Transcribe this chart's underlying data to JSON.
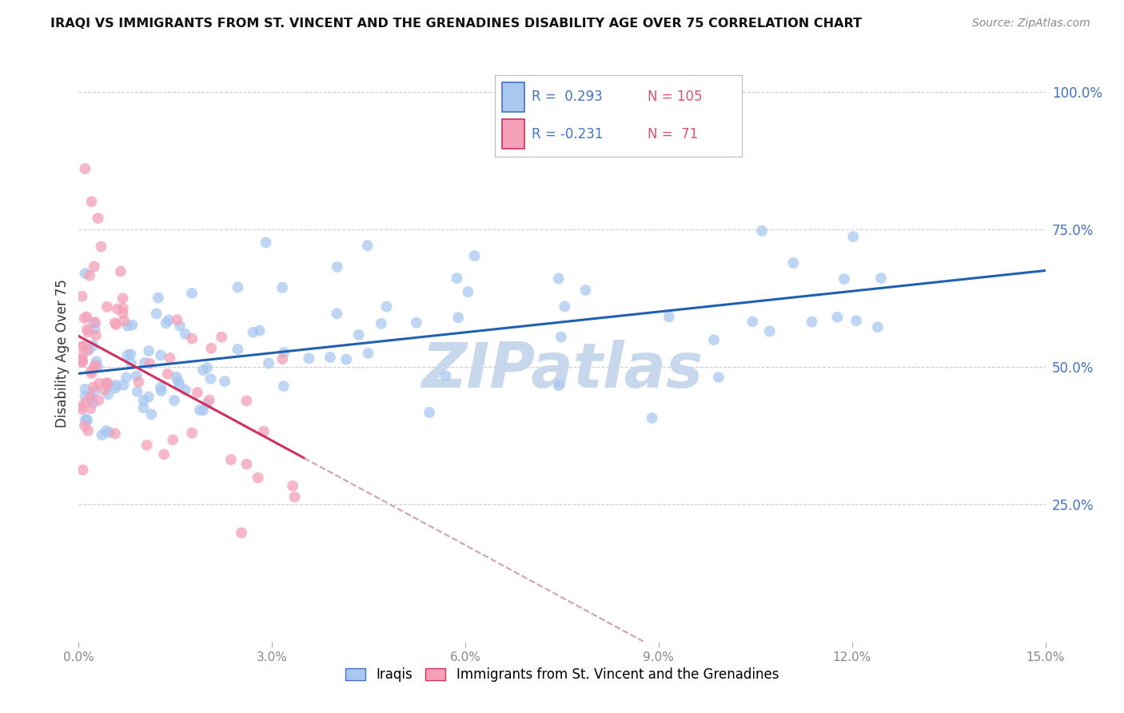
{
  "title": "IRAQI VS IMMIGRANTS FROM ST. VINCENT AND THE GRENADINES DISABILITY AGE OVER 75 CORRELATION CHART",
  "source": "Source: ZipAtlas.com",
  "ylabel": "Disability Age Over 75",
  "right_yticks": [
    "100.0%",
    "75.0%",
    "50.0%",
    "25.0%"
  ],
  "right_ytick_vals": [
    1.0,
    0.75,
    0.5,
    0.25
  ],
  "xlim": [
    0.0,
    0.15
  ],
  "ylim": [
    0.0,
    1.05
  ],
  "iraqis_color": "#A8C8F0",
  "svg_color": "#F4A0B8",
  "trendline_iraqis_color": "#2060B0",
  "trendline_svg_color": "#D03060",
  "trendline_svg_dashed_color": "#D0A0B0",
  "watermark_color": "#C8D8EC",
  "grid_color": "#CCCCCC",
  "background_color": "#FFFFFF",
  "iraqis_label": "Iraqis",
  "svg_label": "Immigrants from St. Vincent and the Grenadines",
  "xtick_vals": [
    0.0,
    0.03,
    0.06,
    0.09,
    0.12,
    0.15
  ],
  "xtick_labels": [
    "0.0%",
    "3.0%",
    "6.0%",
    "9.0%",
    "12.0%",
    "15.0%"
  ]
}
